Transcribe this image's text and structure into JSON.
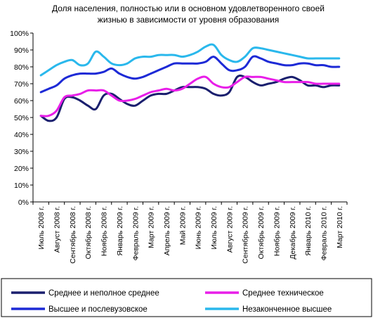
{
  "chart_data": {
    "type": "line",
    "title": "Доля населения, полностью или в основном удовлетворенного своей жизнью  в зависимости от уровня образования",
    "title_lines": [
      "Доля населения, полностью или в основном удовлетворенного своей",
      "жизнью  в зависимости от уровня образования"
    ],
    "xlabel": "",
    "ylabel": "",
    "ylim": [
      0,
      100
    ],
    "y_ticks": [
      "0%",
      "10%",
      "20%",
      "30%",
      "40%",
      "50%",
      "60%",
      "70%",
      "80%",
      "90%",
      "100%"
    ],
    "categories": [
      "Июль 2008 г.",
      "Август 2008 г.",
      "Сентябрь 2008 г.",
      "Октябрь 2008 г.",
      "Ноябрь 2008 г.",
      "Январь 2009 г.",
      "Февраль 2009 г.",
      "Март 2009 г.",
      "Апрель 2009 г.",
      "Май 2009 г.",
      "Июнь 2009 г.",
      "Июль 2009 г.",
      "Август 2009 г.",
      "Сентябрь 2009 г.",
      "Октябрь 2009 г.",
      "Ноябрь 2009 г.",
      "Декабрь 2009 г.",
      "Январь 2010 г.",
      "Февраль 2010 г.",
      "Март 2010 г."
    ],
    "x": [
      0,
      0.5,
      1,
      1.5,
      2,
      2.5,
      3,
      3.5,
      4,
      4.5,
      5,
      5.5,
      6,
      6.5,
      7,
      7.5,
      8,
      8.5,
      9,
      9.5,
      10,
      10.5,
      11,
      11.5,
      12,
      12.5,
      13,
      13.5,
      14,
      14.5,
      15,
      15.5,
      16,
      16.5,
      17,
      17.5,
      18,
      18.5,
      19
    ],
    "series": [
      {
        "name": "Среднее и неполное среднее",
        "color": "#1a1f6e",
        "values": [
          51,
          48,
          50,
          61,
          62,
          60,
          57,
          55,
          63,
          64,
          61,
          58,
          57,
          60,
          63,
          64,
          64,
          66,
          68,
          68,
          68,
          67,
          64,
          63,
          65,
          74,
          74,
          71,
          69,
          70,
          71,
          73,
          74,
          72,
          69,
          69,
          68,
          69,
          69
        ]
      },
      {
        "name": "Среднее техническое",
        "color": "#e81ee8",
        "values": [
          51,
          51,
          54,
          62,
          63,
          64,
          66,
          66,
          66,
          63,
          60,
          60,
          61,
          63,
          65,
          66,
          67,
          66,
          67,
          70,
          73,
          74,
          70,
          68,
          68,
          71,
          74,
          74,
          74,
          73,
          72,
          71,
          71,
          71,
          71,
          70,
          70,
          70,
          70
        ]
      },
      {
        "name": "Высшее и послевузовское",
        "color": "#1d2ad6",
        "values": [
          65,
          67,
          69,
          73,
          75,
          76,
          76,
          76,
          77,
          79,
          76,
          74,
          73,
          74,
          76,
          78,
          80,
          82,
          82,
          82,
          82,
          83,
          86,
          82,
          78,
          78,
          80,
          86,
          85,
          83,
          82,
          81,
          81,
          82,
          82,
          81,
          81,
          80,
          80
        ]
      },
      {
        "name": "Незаконченное высшее",
        "color": "#2ab8ec",
        "values": [
          75,
          78,
          81,
          83,
          84,
          81,
          82,
          89,
          86,
          82,
          81,
          82,
          85,
          86,
          86,
          87,
          87,
          87,
          86,
          87,
          89,
          92,
          93,
          87,
          84,
          83,
          86,
          91,
          91,
          90,
          89,
          88,
          87,
          86,
          85,
          85,
          85,
          85,
          85
        ]
      }
    ],
    "grid": false,
    "legend_position": "bottom"
  }
}
